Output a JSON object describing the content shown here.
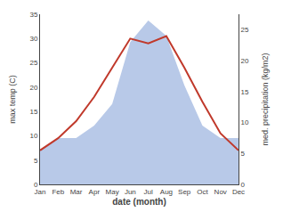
{
  "chart_data": {
    "type": "line",
    "xlabel": "date (month)",
    "ylabel": "max temp (C)",
    "y2label": "med. precipitation (kg/m2)",
    "categories": [
      "Jan",
      "Feb",
      "Mar",
      "Apr",
      "May",
      "Jun",
      "Jul",
      "Aug",
      "Sep",
      "Oct",
      "Nov",
      "Dec"
    ],
    "series": [
      {
        "type": "area",
        "axis": "y2",
        "color": "#b8c9e8",
        "values": [
          5.5,
          7.5,
          7.5,
          9.5,
          13,
          23,
          26.5,
          24,
          16,
          9.5,
          7.5,
          7.5
        ]
      },
      {
        "type": "line",
        "color": "#c0392b",
        "values": [
          7,
          9.5,
          13,
          18,
          24,
          30,
          29,
          30.5,
          24,
          17,
          10.5,
          7
        ]
      }
    ],
    "ylim": [
      0,
      35
    ],
    "yticks": [
      0,
      5,
      10,
      15,
      20,
      25,
      30,
      35
    ],
    "y2lim": [
      0,
      27.5
    ],
    "y2ticks": [
      0,
      5,
      10,
      15,
      20,
      25
    ],
    "grid": false
  }
}
